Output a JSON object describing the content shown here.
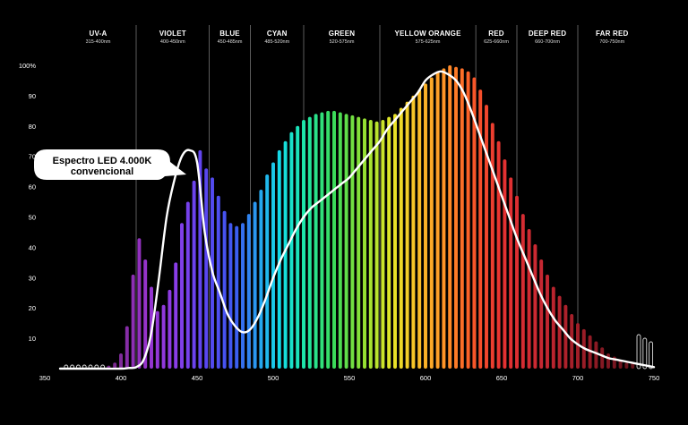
{
  "chart_data": {
    "type": "bar",
    "bands": [
      {
        "name": "UV-A",
        "range": "315-400nm",
        "from": 360,
        "to": 410
      },
      {
        "name": "VIOLET",
        "range": "400-450nm",
        "from": 410,
        "to": 458
      },
      {
        "name": "BLUE",
        "range": "450-485nm",
        "from": 458,
        "to": 485
      },
      {
        "name": "CYAN",
        "range": "485-520nm",
        "from": 485,
        "to": 520
      },
      {
        "name": "GREEN",
        "range": "520-575nm",
        "from": 520,
        "to": 570
      },
      {
        "name": "YELLOW ORANGE",
        "range": "575-625nm",
        "from": 570,
        "to": 633
      },
      {
        "name": "RED",
        "range": "625-660nm",
        "from": 633,
        "to": 660
      },
      {
        "name": "DEEP RED",
        "range": "660-700nm",
        "from": 660,
        "to": 700
      },
      {
        "name": "FAR RED",
        "range": "700-750nm",
        "from": 700,
        "to": 745
      }
    ],
    "yticks": [
      "10",
      "20",
      "30",
      "40",
      "50",
      "60",
      "70",
      "80",
      "90",
      "100%"
    ],
    "xticks": [
      "350",
      "400",
      "450",
      "500",
      "550",
      "600",
      "650",
      "700",
      "750"
    ],
    "xlim": [
      350,
      750
    ],
    "ylim": [
      0,
      100
    ],
    "bars": {
      "x": [
        364,
        368,
        372,
        376,
        380,
        384,
        388,
        392,
        396,
        400,
        404,
        408,
        412,
        416,
        420,
        424,
        428,
        432,
        436,
        440,
        444,
        448,
        452,
        456,
        460,
        464,
        468,
        472,
        476,
        480,
        484,
        488,
        492,
        496,
        500,
        504,
        508,
        512,
        516,
        520,
        524,
        528,
        532,
        536,
        540,
        544,
        548,
        552,
        556,
        560,
        564,
        568,
        572,
        576,
        580,
        584,
        588,
        592,
        596,
        600,
        604,
        608,
        612,
        616,
        620,
        624,
        628,
        632,
        636,
        640,
        644,
        648,
        652,
        656,
        660,
        664,
        668,
        672,
        676,
        680,
        684,
        688,
        692,
        696,
        700,
        704,
        708,
        712,
        716,
        720,
        724,
        728,
        732,
        736,
        740,
        744,
        748
      ],
      "values": [
        1,
        1,
        1,
        1,
        1,
        1,
        1,
        1,
        2,
        5,
        14,
        31,
        43,
        36,
        27,
        19,
        21,
        26,
        35,
        48,
        55,
        62,
        72,
        66,
        63,
        57,
        52,
        48,
        47,
        48,
        51,
        55,
        59,
        64,
        68,
        72,
        75,
        78,
        80,
        82,
        83,
        84,
        84.5,
        85,
        85,
        84.5,
        84,
        83.5,
        83,
        82.5,
        82,
        81.5,
        82,
        83,
        84,
        86,
        88,
        90,
        92,
        94,
        96,
        98,
        99,
        100,
        99.5,
        99,
        98,
        96,
        92,
        87,
        81,
        75,
        69,
        63,
        57,
        51,
        46,
        41,
        36,
        31,
        27,
        24,
        21,
        18,
        15,
        13,
        11,
        9,
        7,
        5,
        4,
        3,
        2,
        2,
        1,
        1,
        1
      ]
    },
    "curve": {
      "x": [
        360,
        380,
        390,
        400,
        405,
        410,
        415,
        420,
        425,
        430,
        435,
        440,
        445,
        450,
        455,
        460,
        465,
        470,
        475,
        480,
        485,
        490,
        495,
        500,
        505,
        510,
        515,
        520,
        525,
        530,
        535,
        540,
        545,
        550,
        555,
        560,
        565,
        570,
        575,
        580,
        585,
        590,
        595,
        600,
        605,
        610,
        615,
        620,
        625,
        630,
        635,
        640,
        645,
        650,
        655,
        660,
        665,
        670,
        675,
        680,
        685,
        690,
        695,
        700,
        705,
        710,
        715,
        720,
        725,
        730,
        735,
        740,
        745,
        750
      ],
      "y": [
        0,
        0,
        0,
        0,
        0.2,
        0.5,
        3,
        12,
        30,
        50,
        62,
        70,
        72,
        68,
        45,
        32,
        25,
        18,
        14,
        12,
        13,
        17,
        23,
        30,
        36,
        41,
        46,
        50,
        53,
        55,
        57,
        59,
        61,
        63,
        66,
        69,
        72,
        75,
        79,
        82,
        85,
        88,
        91,
        95,
        97,
        98,
        97,
        95,
        91,
        85,
        78,
        71,
        64,
        57,
        50,
        43,
        37,
        31,
        25,
        20,
        16,
        13,
        10,
        8,
        6.5,
        5.5,
        4.5,
        3.5,
        3,
        2.5,
        2,
        1.5,
        1,
        0.5
      ]
    },
    "callout": {
      "line1": "Espectro LED 4.000K",
      "line2": "convencional"
    },
    "colors": {
      "background": "#000000",
      "text": "#ffffff",
      "curve": "#ffffff",
      "grid": "#aaaaaa"
    }
  }
}
